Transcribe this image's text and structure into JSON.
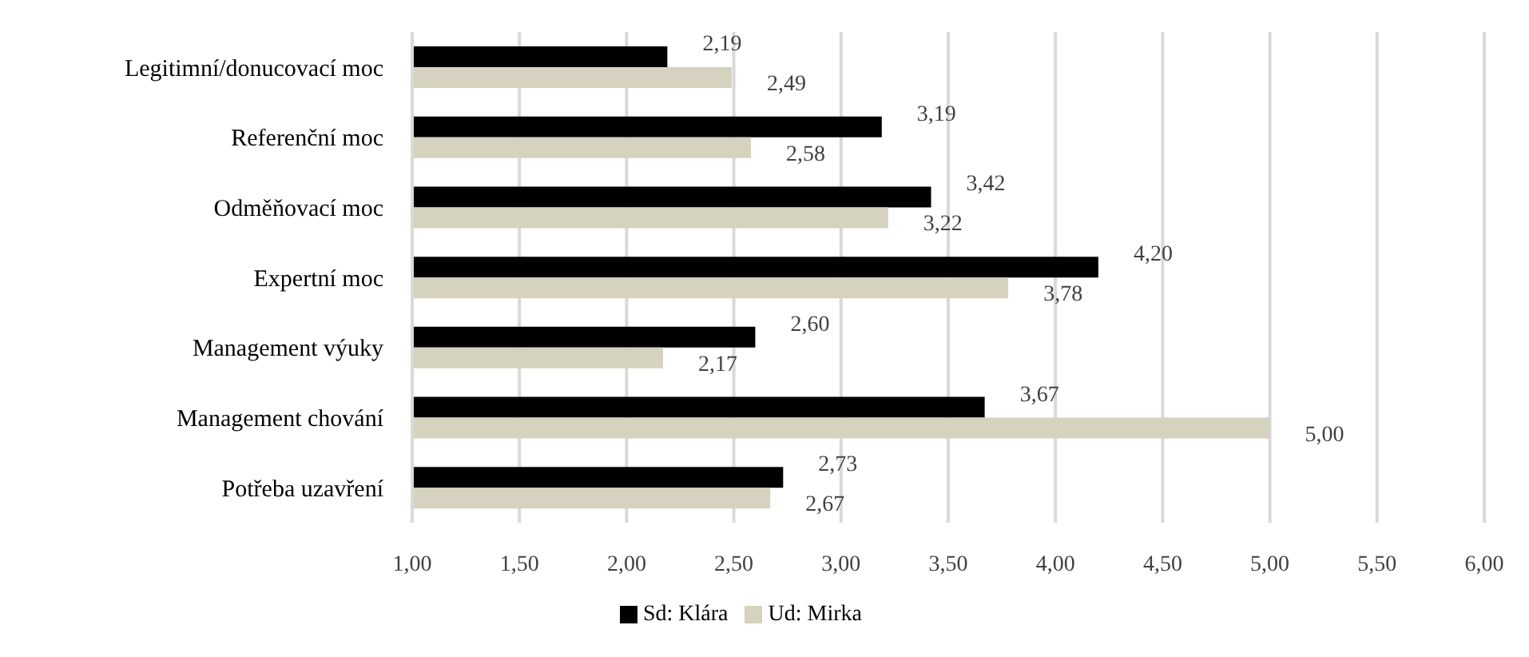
{
  "chart_data": {
    "type": "bar",
    "orientation": "horizontal",
    "categories": [
      "Legitimní/donucovací moc",
      "Referenční moc",
      "Odměňovací moc",
      "Expertní moc",
      "Management výuky",
      "Management chování",
      "Potřeba uzavření"
    ],
    "series": [
      {
        "name": "Sd: Klára",
        "color": "#000000",
        "values": [
          2.19,
          3.19,
          3.42,
          4.2,
          2.6,
          3.67,
          2.73
        ],
        "value_labels": [
          "2,19",
          "3,19",
          "3,42",
          "4,20",
          "2,60",
          "3,67",
          "2,73"
        ]
      },
      {
        "name": "Ud: Mirka",
        "color": "#d5d2c0",
        "values": [
          2.49,
          2.58,
          3.22,
          3.78,
          2.17,
          5.0,
          2.67
        ],
        "value_labels": [
          "2,49",
          "2,58",
          "3,22",
          "3,78",
          "2,17",
          "5,00",
          "2,67"
        ]
      }
    ],
    "xlim": [
      1,
      6
    ],
    "xticks": [
      {
        "value": 1,
        "label": "1,00"
      },
      {
        "value": 1.5,
        "label": "1,50"
      },
      {
        "value": 2,
        "label": "2,00"
      },
      {
        "value": 2.5,
        "label": "2,50"
      },
      {
        "value": 3,
        "label": "3,00"
      },
      {
        "value": 3.5,
        "label": "3,50"
      },
      {
        "value": 4,
        "label": "4,00"
      },
      {
        "value": 4.5,
        "label": "4,50"
      },
      {
        "value": 5,
        "label": "5,00"
      },
      {
        "value": 5.5,
        "label": "5,50"
      },
      {
        "value": 6,
        "label": "6,00"
      }
    ],
    "grid": "x",
    "legend": "bottom"
  }
}
